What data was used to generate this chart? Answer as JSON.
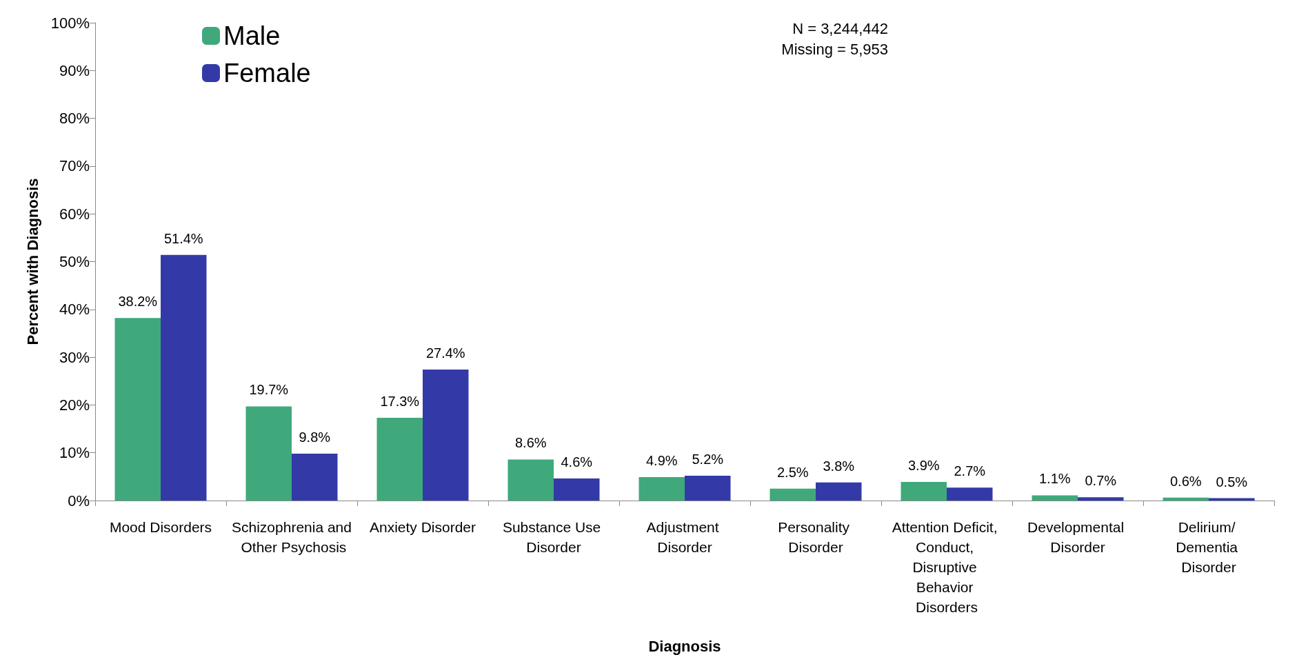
{
  "chart_data": {
    "type": "bar",
    "xlabel": "Diagnosis",
    "ylabel": "Percent with Diagnosis",
    "categories": [
      "Mood Disorders",
      "Schizophrenia and Other Psychosis",
      "Anxiety Disorder",
      "Substance Use Disorder",
      "Adjustment Disorder",
      "Personality Disorder",
      "Attention Deficit, Conduct, Disruptive Behavior Disorders",
      "Developmental Disorder",
      "Delirium/ Dementia Disorder"
    ],
    "series": [
      {
        "name": "Male",
        "color": "#3fa97c",
        "values": [
          38.2,
          19.7,
          17.3,
          8.6,
          4.9,
          2.5,
          3.9,
          1.1,
          0.6
        ],
        "value_labels": [
          "38.2%",
          "19.7%",
          "17.3%",
          "8.6%",
          "4.9%",
          "2.5%",
          "3.9%",
          "1.1%",
          "0.6%"
        ]
      },
      {
        "name": "Female",
        "color": "#333aa8",
        "values": [
          51.4,
          9.8,
          27.4,
          4.6,
          5.2,
          3.8,
          2.7,
          0.7,
          0.5
        ],
        "value_labels": [
          "51.4%",
          "9.8%",
          "27.4%",
          "4.6%",
          "5.2%",
          "3.8%",
          "2.7%",
          "0.7%",
          "0.5%"
        ]
      }
    ],
    "ylim": [
      0,
      100
    ],
    "yticks": [
      {
        "value": 0,
        "label": "0%"
      },
      {
        "value": 10,
        "label": "10%"
      },
      {
        "value": 20,
        "label": "20%"
      },
      {
        "value": 30,
        "label": "30%"
      },
      {
        "value": 40,
        "label": "40%"
      },
      {
        "value": 50,
        "label": "50%"
      },
      {
        "value": 60,
        "label": "60%"
      },
      {
        "value": 70,
        "label": "70%"
      },
      {
        "value": 80,
        "label": "80%"
      },
      {
        "value": 90,
        "label": "90%"
      },
      {
        "value": 100,
        "label": "100%"
      }
    ],
    "grid": false,
    "legend": "top left",
    "annotations": [
      "N = 3,244,442",
      "Missing = 5,953"
    ]
  }
}
